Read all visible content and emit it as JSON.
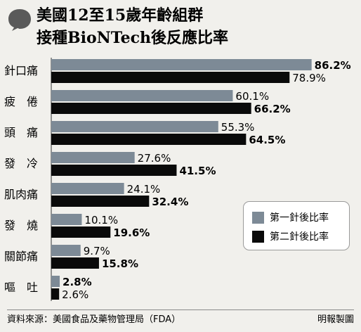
{
  "chart_data": {
    "type": "bar",
    "title": "美國12至15歲年齡組群",
    "subtitle": "接種BioNTech後反應比率",
    "categories": [
      "針口痛",
      "疲　倦",
      "頭　痛",
      "發　冷",
      "肌肉痛",
      "發　燒",
      "關節痛",
      "嘔　吐"
    ],
    "series": [
      {
        "name": "第一針後比率",
        "values": [
          86.2,
          60.1,
          55.3,
          27.6,
          24.1,
          10.1,
          9.7,
          2.8
        ],
        "labels": [
          "86.2%",
          "60.1%",
          "55.3%",
          "27.6%",
          "24.1%",
          "10.1%",
          "9.7%",
          "2.8%"
        ],
        "bold": [
          true,
          false,
          false,
          false,
          false,
          false,
          false,
          true
        ]
      },
      {
        "name": "第二針後比率",
        "values": [
          78.9,
          66.2,
          64.5,
          41.5,
          32.4,
          19.6,
          15.8,
          2.6
        ],
        "labels": [
          "78.9%",
          "66.2%",
          "64.5%",
          "41.5%",
          "32.4%",
          "19.6%",
          "15.8%",
          "2.6%"
        ],
        "bold": [
          false,
          true,
          true,
          true,
          true,
          true,
          true,
          false
        ]
      }
    ],
    "xlim": [
      0,
      100
    ],
    "legend_position": "bottom-right",
    "colors": {
      "first": "#7d8a96",
      "second": "#0a0a0a"
    }
  },
  "footer": {
    "source": "資料來源：美國食品及藥物管理局（FDA）",
    "credit": "明報製圖"
  },
  "icons": {
    "title_marker": "speech-bubble-icon"
  }
}
